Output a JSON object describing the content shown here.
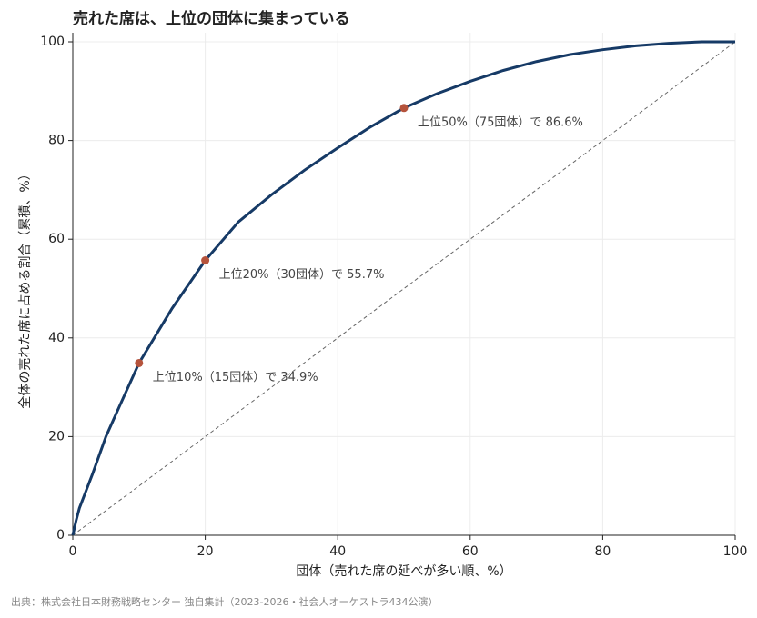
{
  "chart_data": {
    "type": "line",
    "title": "売れた席は、上位の団体に集まっている",
    "x_label": "団体（売れた席の延べが多い順、%）",
    "y_label": "全体の売れた席に占める割合（累積、%）",
    "source": "出典：株式会社日本財務戦略センター 独自集計（2023-2026・社会人オーケストラ434公演）",
    "x": [
      0,
      0.5,
      1,
      2,
      3,
      5,
      7,
      10,
      15,
      20,
      25,
      30,
      35,
      40,
      45,
      50,
      55,
      60,
      65,
      70,
      75,
      80,
      85,
      90,
      95,
      100
    ],
    "series": [
      {
        "color": "#163a66",
        "values": [
          0,
          3,
          5.5,
          9,
          12.5,
          20,
          26,
          34.9,
          46,
          55.7,
          63.5,
          69,
          74,
          78.5,
          82.8,
          86.6,
          89.5,
          92,
          94.2,
          96,
          97.4,
          98.4,
          99.2,
          99.7,
          100,
          100
        ]
      }
    ],
    "reference_line": {
      "x": [
        0,
        100
      ],
      "values": [
        0,
        100
      ],
      "color": "#666666"
    },
    "highlights": [
      {
        "x": 10,
        "value": 34.9,
        "label": "上位10%（15団体）で 34.9%"
      },
      {
        "x": 20,
        "value": 55.7,
        "label": "上位20%（30団体）で 55.7%"
      },
      {
        "x": 50,
        "value": 86.6,
        "label": "上位50%（75団体）で 86.6%"
      }
    ],
    "highlight_color": "#b5533c",
    "xlim": [
      0,
      100
    ],
    "ylim": [
      0,
      100
    ],
    "xticks": [
      0,
      20,
      40,
      60,
      80,
      100
    ],
    "yticks": [
      0,
      20,
      40,
      60,
      80,
      100
    ],
    "grid": true
  }
}
